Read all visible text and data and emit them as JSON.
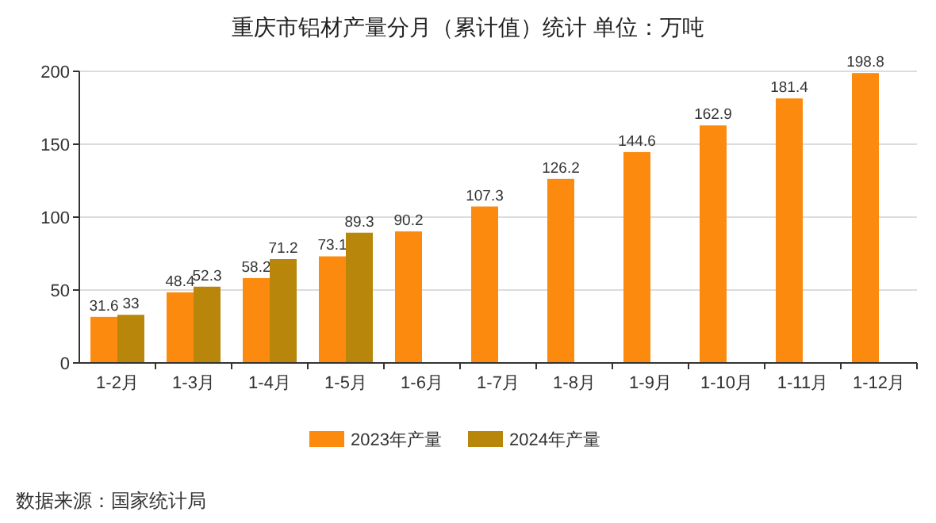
{
  "chart_data": {
    "type": "bar",
    "title": "重庆市铝材产量分月（累计值）统计 单位：万吨",
    "categories": [
      "1-2月",
      "1-3月",
      "1-4月",
      "1-5月",
      "1-6月",
      "1-7月",
      "1-8月",
      "1-9月",
      "1-10月",
      "1-11月",
      "1-12月"
    ],
    "series": [
      {
        "name": "2023年产量",
        "color": "#fb8a0e",
        "values": [
          31.6,
          48.4,
          58.2,
          73.1,
          90.2,
          107.3,
          126.2,
          144.6,
          162.9,
          181.4,
          198.8
        ]
      },
      {
        "name": "2024年产量",
        "color": "#b8860b",
        "values": [
          33,
          52.3,
          71.2,
          89.3,
          null,
          null,
          null,
          null,
          null,
          null,
          null
        ]
      }
    ],
    "ylim": [
      0,
      200
    ],
    "yticks": [
      0,
      50,
      100,
      150,
      200
    ],
    "grid": "y",
    "legend": "bottom",
    "data_labels": true,
    "annotations": [
      "数据来源：国家统计局"
    ]
  }
}
